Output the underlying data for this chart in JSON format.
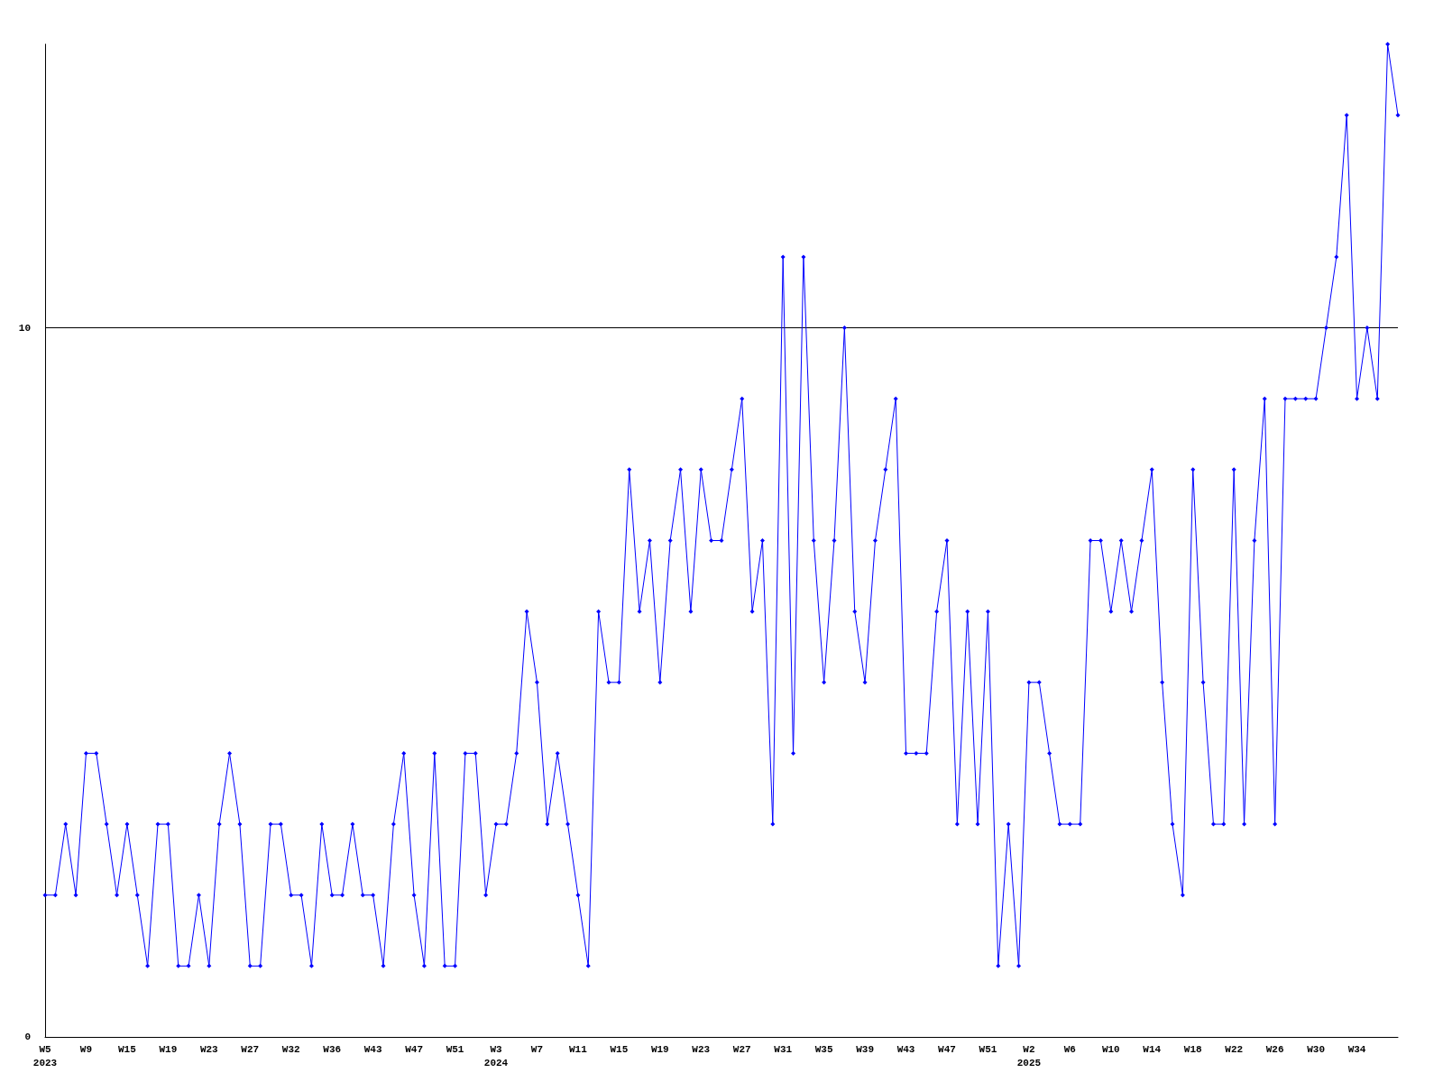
{
  "chart_data": {
    "type": "line",
    "categories": [
      "W5\n2023",
      null,
      null,
      null,
      "W9",
      null,
      null,
      null,
      "W15",
      null,
      null,
      null,
      "W19",
      null,
      null,
      null,
      "W23",
      null,
      null,
      null,
      "W27",
      null,
      null,
      null,
      "W32",
      null,
      null,
      null,
      "W36",
      null,
      null,
      null,
      "W43",
      null,
      null,
      null,
      "W47",
      null,
      null,
      null,
      "W51",
      null,
      null,
      null,
      "W3\n2024",
      null,
      null,
      null,
      "W7",
      null,
      null,
      null,
      "W11",
      null,
      null,
      null,
      "W15",
      null,
      null,
      null,
      "W19",
      null,
      null,
      null,
      "W23",
      null,
      null,
      null,
      "W27",
      null,
      null,
      null,
      "W31",
      null,
      null,
      null,
      "W35",
      null,
      null,
      null,
      "W39",
      null,
      null,
      null,
      "W43",
      null,
      null,
      null,
      "W47",
      null,
      null,
      null,
      "W51",
      null,
      null,
      null,
      "W2\n2025",
      null,
      null,
      null,
      "W6",
      null,
      null,
      null,
      "W10",
      null,
      null,
      null,
      "W14",
      null,
      null,
      null,
      "W18",
      null,
      null,
      null,
      "W22",
      null,
      null,
      null,
      "W26",
      null,
      null,
      null,
      "W30",
      null,
      null,
      null,
      "W34",
      null,
      null,
      null,
      null
    ],
    "series": [
      {
        "color": "#0000ff",
        "values": [
          2,
          2,
          3,
          2,
          4,
          4,
          3,
          2,
          3,
          2,
          1,
          3,
          3,
          1,
          1,
          2,
          1,
          3,
          4,
          3,
          1,
          1,
          3,
          3,
          2,
          2,
          1,
          3,
          2,
          2,
          3,
          2,
          2,
          1,
          3,
          4,
          2,
          1,
          4,
          1,
          1,
          4,
          4,
          2,
          3,
          3,
          4,
          6,
          5,
          3,
          4,
          3,
          2,
          1,
          6,
          5,
          5,
          8,
          6,
          7,
          5,
          7,
          8,
          6,
          8,
          7,
          7,
          8,
          9,
          6,
          7,
          3,
          11,
          4,
          11,
          7,
          5,
          7,
          10,
          6,
          5,
          7,
          8,
          9,
          4,
          4,
          4,
          6,
          7,
          3,
          6,
          3,
          6,
          1,
          3,
          1,
          5,
          5,
          4,
          3,
          3,
          3,
          7,
          7,
          6,
          7,
          6,
          7,
          8,
          5,
          3,
          2,
          8,
          5,
          3,
          3,
          8,
          3,
          7,
          9,
          3,
          9,
          9,
          9,
          9,
          10,
          11,
          13,
          9,
          10,
          9,
          14,
          13
        ]
      }
    ],
    "ylim": [
      0,
      14
    ],
    "yticks": [
      0,
      10
    ],
    "grid": "y",
    "marker": "diamond",
    "line_style": "solid"
  }
}
